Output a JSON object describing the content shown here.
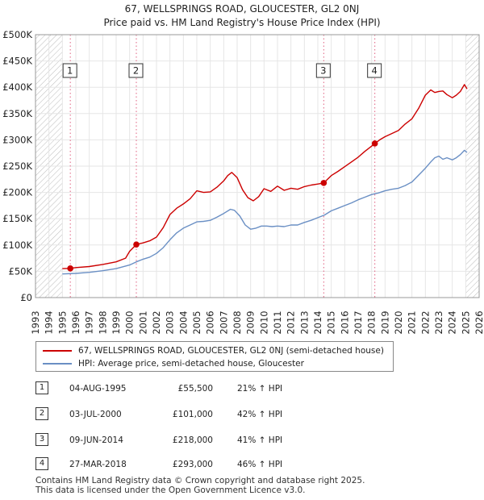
{
  "chart_data": {
    "type": "line",
    "title": "67, WELLSPRINGS ROAD, GLOUCESTER, GL2 0NJ",
    "subtitle": "Price paid vs. HM Land Registry's House Price Index (HPI)",
    "xlabel": "",
    "ylabel": "",
    "xlim": [
      1993,
      2026
    ],
    "ylim": [
      0,
      500000
    ],
    "x_ticks": [
      1993,
      1994,
      1995,
      1996,
      1997,
      1998,
      1999,
      2000,
      2001,
      2002,
      2003,
      2004,
      2005,
      2006,
      2007,
      2008,
      2009,
      2010,
      2011,
      2012,
      2013,
      2014,
      2015,
      2016,
      2017,
      2018,
      2019,
      2020,
      2021,
      2022,
      2023,
      2024,
      2025,
      2026
    ],
    "y_ticks": [
      {
        "value": 0,
        "label": "£0"
      },
      {
        "value": 50000,
        "label": "£50K"
      },
      {
        "value": 100000,
        "label": "£100K"
      },
      {
        "value": 150000,
        "label": "£150K"
      },
      {
        "value": 200000,
        "label": "£200K"
      },
      {
        "value": 250000,
        "label": "£250K"
      },
      {
        "value": 300000,
        "label": "£300K"
      },
      {
        "value": 350000,
        "label": "£350K"
      },
      {
        "value": 400000,
        "label": "£400K"
      },
      {
        "value": 450000,
        "label": "£450K"
      },
      {
        "value": 500000,
        "label": "£500K"
      }
    ],
    "grid": true,
    "hatched_regions": [
      {
        "from": 1993,
        "to": 1995.0
      },
      {
        "from": 2025.0,
        "to": 2026
      }
    ],
    "series": [
      {
        "name": "67, WELLSPRINGS ROAD, GLOUCESTER, GL2 0NJ (semi-detached house)",
        "color": "#cc0000",
        "x": [
          1995.0,
          1995.59,
          1996.0,
          1997.0,
          1998.0,
          1999.0,
          1999.7,
          2000.0,
          2000.5,
          2001.0,
          2001.5,
          2002.0,
          2002.5,
          2003.0,
          2003.5,
          2004.0,
          2004.5,
          2005.0,
          2005.5,
          2006.0,
          2006.5,
          2007.0,
          2007.3,
          2007.6,
          2008.0,
          2008.4,
          2008.8,
          2009.2,
          2009.6,
          2010.0,
          2010.5,
          2011.0,
          2011.5,
          2012.0,
          2012.5,
          2013.0,
          2013.5,
          2014.0,
          2014.44,
          2015.0,
          2015.5,
          2016.0,
          2016.5,
          2017.0,
          2017.5,
          2018.0,
          2018.24,
          2018.6,
          2019.0,
          2019.5,
          2020.0,
          2020.5,
          2021.0,
          2021.5,
          2022.0,
          2022.4,
          2022.7,
          2023.0,
          2023.3,
          2023.6,
          2024.0,
          2024.3,
          2024.6,
          2024.9,
          2025.1
        ],
        "values": [
          55000,
          55500,
          57000,
          59000,
          63000,
          68000,
          75000,
          88000,
          101000,
          104000,
          108000,
          115000,
          133000,
          158000,
          170000,
          178000,
          188000,
          203000,
          200000,
          201000,
          210000,
          222000,
          232000,
          238000,
          228000,
          205000,
          190000,
          184000,
          192000,
          207000,
          202000,
          212000,
          204000,
          208000,
          206000,
          211000,
          214000,
          216000,
          218000,
          232000,
          240000,
          249000,
          258000,
          267000,
          278000,
          288000,
          293000,
          300000,
          306000,
          312000,
          318000,
          330000,
          340000,
          360000,
          385000,
          395000,
          390000,
          392000,
          393000,
          386000,
          380000,
          385000,
          392000,
          405000,
          397000
        ]
      },
      {
        "name": "HPI: Average price, semi-detached house, Gloucester",
        "color": "#6a8fc4",
        "x": [
          1995.0,
          1996.0,
          1997.0,
          1998.0,
          1999.0,
          2000.0,
          2000.5,
          2001.0,
          2001.5,
          2002.0,
          2002.5,
          2003.0,
          2003.5,
          2004.0,
          2004.5,
          2005.0,
          2005.5,
          2006.0,
          2006.5,
          2007.0,
          2007.5,
          2007.8,
          2008.2,
          2008.6,
          2009.0,
          2009.4,
          2009.8,
          2010.2,
          2010.6,
          2011.0,
          2011.5,
          2012.0,
          2012.5,
          2013.0,
          2013.5,
          2014.0,
          2014.5,
          2015.0,
          2015.5,
          2016.0,
          2016.5,
          2017.0,
          2017.5,
          2018.0,
          2018.5,
          2019.0,
          2019.5,
          2020.0,
          2020.5,
          2021.0,
          2021.5,
          2022.0,
          2022.4,
          2022.7,
          2023.0,
          2023.3,
          2023.6,
          2024.0,
          2024.3,
          2024.6,
          2024.9,
          2025.1
        ],
        "values": [
          45000,
          46000,
          48000,
          51000,
          55000,
          62000,
          68000,
          73000,
          77000,
          84000,
          95000,
          110000,
          123000,
          132000,
          138000,
          144000,
          145000,
          147000,
          153000,
          160000,
          168000,
          166000,
          155000,
          138000,
          130000,
          132000,
          136000,
          136000,
          135000,
          136000,
          135000,
          138000,
          138000,
          143000,
          147000,
          152000,
          157000,
          165000,
          170000,
          175000,
          180000,
          186000,
          191000,
          196000,
          199000,
          203000,
          206000,
          208000,
          213000,
          220000,
          233000,
          246000,
          258000,
          266000,
          269000,
          263000,
          266000,
          262000,
          266000,
          272000,
          280000,
          276000
        ]
      }
    ],
    "transactions": [
      {
        "id": "1",
        "x": 1995.59,
        "value": 55500,
        "date": "04-AUG-1995",
        "price": "£55,500",
        "hpi": "21% ↑ HPI"
      },
      {
        "id": "2",
        "x": 2000.5,
        "value": 101000,
        "date": "03-JUL-2000",
        "price": "£101,000",
        "hpi": "42% ↑ HPI"
      },
      {
        "id": "3",
        "x": 2014.44,
        "value": 218000,
        "date": "09-JUN-2014",
        "price": "£218,000",
        "hpi": "41% ↑ HPI"
      },
      {
        "id": "4",
        "x": 2018.24,
        "value": 293000,
        "date": "27-MAR-2018",
        "price": "£293,000",
        "hpi": "46% ↑ HPI"
      }
    ]
  },
  "legend": {
    "property_label": "67, WELLSPRINGS ROAD, GLOUCESTER, GL2 0NJ (semi-detached house)",
    "hpi_label": "HPI: Average price, semi-detached house, Gloucester",
    "property_color": "#cc0000",
    "hpi_color": "#6a8fc4"
  },
  "footer": "Contains HM Land Registry data © Crown copyright and database right 2025.\nThis data is licensed under the Open Government Licence v3.0."
}
